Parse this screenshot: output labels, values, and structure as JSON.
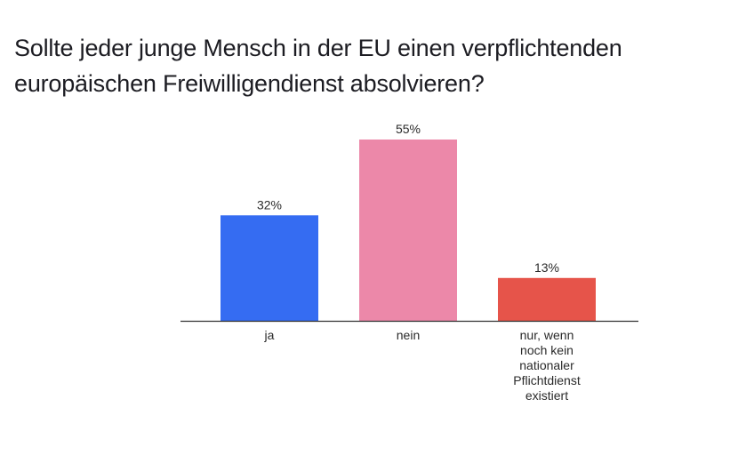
{
  "chart_data": {
    "type": "bar",
    "title": "Sollte jeder junge Mensch in der EU einen verpflichtenden europäischen Freiwilligendienst absolvieren?",
    "categories": [
      "ja",
      "nein",
      "nur, wenn noch kein nationaler Pflichtdienst existiert"
    ],
    "category_lines": [
      [
        "ja"
      ],
      [
        "nein"
      ],
      [
        "nur, wenn",
        "noch kein",
        "nationaler",
        "Pflichtdienst",
        "existiert"
      ]
    ],
    "values": [
      32,
      55,
      13
    ],
    "value_labels": [
      "32%",
      "55%",
      "13%"
    ],
    "colors": [
      "#356cf2",
      "#ec88a9",
      "#e6544a"
    ],
    "ylim": [
      0,
      55
    ],
    "grid": false,
    "xlabel": "",
    "ylabel": ""
  }
}
